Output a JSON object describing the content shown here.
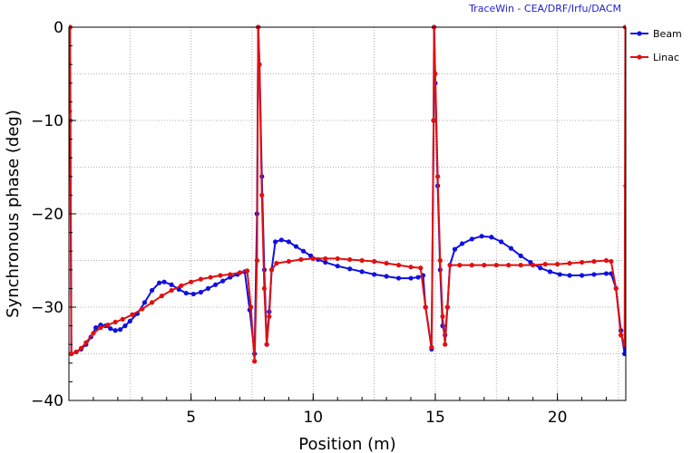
{
  "watermark": "TraceWin - CEA/DRF/Irfu/DACM",
  "chart_data": {
    "type": "line",
    "xlabel": "Position (m)",
    "ylabel": "Synchronous phase (deg)",
    "xlim": [
      0,
      22.8
    ],
    "ylim": [
      -40,
      0
    ],
    "x_ticks": [
      5,
      10,
      15,
      20
    ],
    "x_tick_labels": [
      "5",
      "10",
      "15",
      "20"
    ],
    "y_ticks": [
      0,
      -10,
      -20,
      -30,
      -40
    ],
    "y_tick_labels": [
      "0",
      "−10",
      "−20",
      "−30",
      "−40"
    ],
    "grid": true,
    "legend_position": "top-right",
    "series": [
      {
        "name": "Beam",
        "color": "#1010e0",
        "points": [
          [
            0.05,
            -10
          ],
          [
            0.1,
            -35
          ],
          [
            0.3,
            -34.8
          ],
          [
            0.5,
            -34.5
          ],
          [
            0.7,
            -34
          ],
          [
            0.9,
            -33.2
          ],
          [
            1.1,
            -32.2
          ],
          [
            1.3,
            -31.9
          ],
          [
            1.5,
            -32
          ],
          [
            1.7,
            -32.3
          ],
          [
            1.9,
            -32.5
          ],
          [
            2.1,
            -32.4
          ],
          [
            2.3,
            -32
          ],
          [
            2.5,
            -31.5
          ],
          [
            2.8,
            -30.7
          ],
          [
            3.1,
            -29.5
          ],
          [
            3.4,
            -28.2
          ],
          [
            3.7,
            -27.4
          ],
          [
            3.9,
            -27.3
          ],
          [
            4.2,
            -27.6
          ],
          [
            4.5,
            -28.1
          ],
          [
            4.8,
            -28.5
          ],
          [
            5.1,
            -28.6
          ],
          [
            5.4,
            -28.4
          ],
          [
            5.7,
            -28
          ],
          [
            6.0,
            -27.6
          ],
          [
            6.3,
            -27.2
          ],
          [
            6.6,
            -26.8
          ],
          [
            6.9,
            -26.5
          ],
          [
            7.2,
            -26.2
          ],
          [
            7.4,
            -30.3
          ],
          [
            7.6,
            -35
          ],
          [
            7.7,
            -20
          ],
          [
            7.75,
            0
          ],
          [
            7.8,
            -4
          ],
          [
            7.9,
            -16
          ],
          [
            8.0,
            -26
          ],
          [
            8.1,
            -34
          ],
          [
            8.2,
            -30.5
          ],
          [
            8.3,
            -26
          ],
          [
            8.45,
            -23
          ],
          [
            8.7,
            -22.8
          ],
          [
            9.0,
            -23
          ],
          [
            9.3,
            -23.5
          ],
          [
            9.6,
            -24
          ],
          [
            9.9,
            -24.5
          ],
          [
            10.2,
            -24.9
          ],
          [
            10.5,
            -25.2
          ],
          [
            11.0,
            -25.6
          ],
          [
            11.5,
            -25.9
          ],
          [
            12.0,
            -26.2
          ],
          [
            12.5,
            -26.5
          ],
          [
            13.0,
            -26.7
          ],
          [
            13.5,
            -26.9
          ],
          [
            14.0,
            -26.9
          ],
          [
            14.3,
            -26.8
          ],
          [
            14.5,
            -26.6
          ],
          [
            14.6,
            -30
          ],
          [
            14.85,
            -34.5
          ],
          [
            14.93,
            -10
          ],
          [
            14.95,
            0
          ],
          [
            15.0,
            -6
          ],
          [
            15.1,
            -17
          ],
          [
            15.2,
            -26
          ],
          [
            15.3,
            -32
          ],
          [
            15.4,
            -33
          ],
          [
            15.5,
            -30
          ],
          [
            15.6,
            -25.5
          ],
          [
            15.8,
            -23.8
          ],
          [
            16.1,
            -23.2
          ],
          [
            16.5,
            -22.7
          ],
          [
            16.9,
            -22.4
          ],
          [
            17.3,
            -22.5
          ],
          [
            17.7,
            -23
          ],
          [
            18.1,
            -23.7
          ],
          [
            18.5,
            -24.5
          ],
          [
            18.9,
            -25.2
          ],
          [
            19.3,
            -25.8
          ],
          [
            19.7,
            -26.2
          ],
          [
            20.1,
            -26.5
          ],
          [
            20.5,
            -26.6
          ],
          [
            21.0,
            -26.6
          ],
          [
            21.5,
            -26.5
          ],
          [
            22.0,
            -26.4
          ],
          [
            22.2,
            -26.4
          ],
          [
            22.4,
            -28
          ],
          [
            22.6,
            -32.5
          ],
          [
            22.75,
            -35
          ],
          [
            22.8,
            -17
          ]
        ]
      },
      {
        "name": "Linac",
        "color": "#e01010",
        "points": [
          [
            0.03,
            -9
          ],
          [
            0.05,
            0
          ],
          [
            0.1,
            -35
          ],
          [
            0.3,
            -34.8
          ],
          [
            0.5,
            -34.4
          ],
          [
            0.7,
            -33.8
          ],
          [
            1.0,
            -32.8
          ],
          [
            1.3,
            -32.2
          ],
          [
            1.6,
            -31.9
          ],
          [
            1.9,
            -31.6
          ],
          [
            2.2,
            -31.3
          ],
          [
            2.6,
            -30.8
          ],
          [
            3.0,
            -30.2
          ],
          [
            3.4,
            -29.5
          ],
          [
            3.8,
            -28.8
          ],
          [
            4.2,
            -28.2
          ],
          [
            4.6,
            -27.7
          ],
          [
            5.0,
            -27.3
          ],
          [
            5.4,
            -27
          ],
          [
            5.8,
            -26.8
          ],
          [
            6.2,
            -26.6
          ],
          [
            6.6,
            -26.5
          ],
          [
            7.0,
            -26.3
          ],
          [
            7.3,
            -26.1
          ],
          [
            7.45,
            -30
          ],
          [
            7.6,
            -35.8
          ],
          [
            7.7,
            -25
          ],
          [
            7.75,
            0
          ],
          [
            7.8,
            -4
          ],
          [
            7.9,
            -18
          ],
          [
            8.0,
            -28
          ],
          [
            8.1,
            -34
          ],
          [
            8.2,
            -31
          ],
          [
            8.3,
            -26
          ],
          [
            8.5,
            -25.3
          ],
          [
            9.0,
            -25.1
          ],
          [
            9.5,
            -24.9
          ],
          [
            10.0,
            -24.8
          ],
          [
            10.5,
            -24.8
          ],
          [
            11.0,
            -24.8
          ],
          [
            11.5,
            -24.9
          ],
          [
            12.0,
            -25
          ],
          [
            12.5,
            -25.1
          ],
          [
            13.0,
            -25.3
          ],
          [
            13.5,
            -25.5
          ],
          [
            14.0,
            -25.7
          ],
          [
            14.4,
            -25.8
          ],
          [
            14.6,
            -30
          ],
          [
            14.85,
            -34.3
          ],
          [
            14.93,
            -10
          ],
          [
            14.95,
            0
          ],
          [
            15.0,
            -5
          ],
          [
            15.1,
            -16
          ],
          [
            15.2,
            -25
          ],
          [
            15.3,
            -31
          ],
          [
            15.4,
            -34
          ],
          [
            15.5,
            -30
          ],
          [
            15.6,
            -25.5
          ],
          [
            16.0,
            -25.5
          ],
          [
            16.5,
            -25.5
          ],
          [
            17.0,
            -25.5
          ],
          [
            17.5,
            -25.5
          ],
          [
            18.0,
            -25.5
          ],
          [
            18.5,
            -25.5
          ],
          [
            19.0,
            -25.5
          ],
          [
            19.5,
            -25.4
          ],
          [
            20.0,
            -25.4
          ],
          [
            20.5,
            -25.3
          ],
          [
            21.0,
            -25.2
          ],
          [
            21.5,
            -25.1
          ],
          [
            22.0,
            -25
          ],
          [
            22.2,
            -25.1
          ],
          [
            22.4,
            -28
          ],
          [
            22.6,
            -33
          ],
          [
            22.75,
            -34
          ],
          [
            22.78,
            0
          ]
        ]
      }
    ]
  }
}
